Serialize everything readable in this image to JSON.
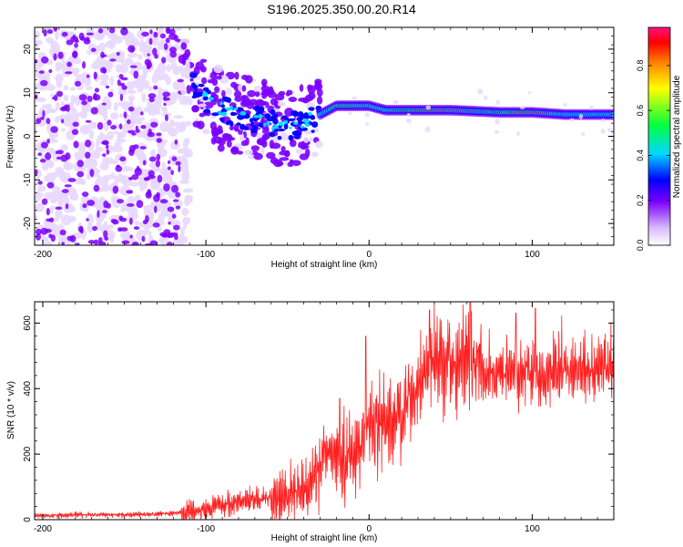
{
  "title": "S196.2025.350.00.20.R14",
  "chart_data": [
    {
      "type": "heatmap",
      "name": "spectrogram",
      "xlabel": "Height of straight line (km)",
      "ylabel": "Frequency (Hz)",
      "xlim": [
        -205,
        150
      ],
      "ylim": [
        -25,
        25
      ],
      "xticks": [
        -200,
        -100,
        0,
        100
      ],
      "xtick_labels": [
        "-200",
        "-100",
        "0",
        "100"
      ],
      "yticks": [
        20,
        10,
        0,
        -10,
        -20
      ],
      "ytick_labels": [
        "20",
        "10",
        "0",
        "-10",
        "-20"
      ],
      "ridge": {
        "description": "dominant frequency band",
        "x": [
          -120,
          -110,
          -100,
          -90,
          -80,
          -70,
          -60,
          -50,
          -40,
          -30,
          -20,
          -10,
          0,
          10,
          20,
          50,
          80,
          100,
          120,
          150
        ],
        "y": [
          15,
          12,
          8,
          6,
          5,
          4,
          3,
          2,
          3,
          5,
          7,
          7,
          7,
          6,
          6,
          6,
          5.5,
          5.5,
          5,
          5
        ]
      },
      "colorbar": {
        "label": "Normalized spectral amplitude",
        "range": [
          0.0,
          0.97
        ],
        "ticks": [
          0.0,
          0.2,
          0.4,
          0.6,
          0.8
        ],
        "tick_labels": [
          "0.0",
          "0.2",
          "0.4",
          "0.6",
          "0.8"
        ]
      },
      "colors": [
        "#ffffff",
        "#e8d8ff",
        "#7b00ff",
        "#0000ff",
        "#00e0ff",
        "#00ff60",
        "#ffff00",
        "#ff8000",
        "#ff0000",
        "#ff1080"
      ]
    },
    {
      "type": "line",
      "name": "snr",
      "xlabel": "Height of straight line (km)",
      "ylabel": "SNR (10 * v/v)",
      "xlim": [
        -205,
        150
      ],
      "ylim": [
        0,
        665
      ],
      "xticks": [
        -200,
        -100,
        0,
        100
      ],
      "xtick_labels": [
        "-200",
        "-100",
        "0",
        "100"
      ],
      "yticks": [
        0,
        200,
        400,
        600
      ],
      "ytick_labels": [
        "0",
        "200",
        "400",
        "600"
      ],
      "series": [
        {
          "name": "SNR",
          "color": "#ff2020",
          "x": [
            -205,
            -180,
            -150,
            -125,
            -110,
            -100,
            -90,
            -80,
            -70,
            -60,
            -50,
            -40,
            -30,
            -25,
            -20,
            -15,
            -10,
            -5,
            0,
            5,
            10,
            15,
            20,
            25,
            30,
            35,
            40,
            45,
            50,
            55,
            60,
            65,
            70,
            80,
            90,
            100,
            110,
            120,
            130,
            140,
            150
          ],
          "y": [
            12,
            15,
            15,
            18,
            25,
            35,
            45,
            55,
            60,
            70,
            80,
            100,
            160,
            220,
            200,
            170,
            200,
            230,
            290,
            300,
            290,
            310,
            330,
            370,
            410,
            440,
            460,
            470,
            470,
            480,
            490,
            460,
            450,
            440,
            440,
            440,
            445,
            450,
            455,
            460,
            470
          ]
        }
      ],
      "noise_amplitude": [
        {
          "x_from": -205,
          "x_to": -115,
          "amp": 10
        },
        {
          "x_from": -115,
          "x_to": -60,
          "amp": 45
        },
        {
          "x_from": -60,
          "x_to": -20,
          "amp": 120
        },
        {
          "x_from": -20,
          "x_to": 10,
          "amp": 170
        },
        {
          "x_from": 10,
          "x_to": 70,
          "amp": 170
        },
        {
          "x_from": 70,
          "x_to": 150,
          "amp": 120
        }
      ],
      "peaks": [
        {
          "x": -18,
          "y": 370
        },
        {
          "x": -2,
          "y": 560
        },
        {
          "x": 37,
          "y": 640
        },
        {
          "x": 62,
          "y": 665
        },
        {
          "x": 90,
          "y": 630
        },
        {
          "x": 102,
          "y": 645
        }
      ]
    }
  ]
}
